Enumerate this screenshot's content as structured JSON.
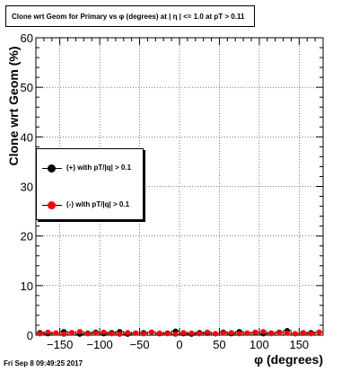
{
  "title": "Clone wrt Geom for Primary vs φ (degrees) at | η | <= 1.0 at pT > 0.11",
  "timestamp": "Fri Sep  8 09:49:25 2017",
  "chart_data": {
    "type": "scatter",
    "xlabel": "φ (degrees)",
    "ylabel": "Clone wrt Geom (%)",
    "xlim": [
      -180,
      180
    ],
    "ylim": [
      0,
      60
    ],
    "xticks": [
      -150,
      -100,
      -50,
      0,
      50,
      100,
      150
    ],
    "yticks": [
      0,
      10,
      20,
      30,
      40,
      50,
      60
    ],
    "grid": true,
    "legend_position": "left",
    "colors": {
      "positive": "#000000",
      "negative": "#ff0000"
    },
    "x": [
      -175,
      -165,
      -155,
      -145,
      -135,
      -125,
      -115,
      -105,
      -95,
      -85,
      -75,
      -65,
      -55,
      -45,
      -35,
      -25,
      -15,
      -5,
      5,
      15,
      25,
      35,
      45,
      55,
      65,
      75,
      85,
      95,
      105,
      115,
      125,
      135,
      145,
      155,
      165,
      175
    ],
    "series": [
      {
        "name": "(+) with pT/|q| > 0.1",
        "values": [
          0.5,
          0.3,
          0.4,
          0.7,
          0.5,
          0.2,
          0.4,
          0.6,
          0.3,
          0.5,
          0.7,
          0.2,
          0.4,
          0.5,
          0.6,
          0.3,
          0.4,
          0.8,
          0.3,
          0.2,
          0.5,
          0.4,
          0.3,
          0.6,
          0.3,
          0.7,
          0.4,
          0.5,
          0.3,
          0.4,
          0.6,
          0.9,
          0.3,
          0.4,
          0.5,
          0.6
        ]
      },
      {
        "name": "(-) with pT/|q| > 0.1",
        "values": [
          0.3,
          0.6,
          0.4,
          0.2,
          0.5,
          0.7,
          0.3,
          0.4,
          0.6,
          0.3,
          0.2,
          0.5,
          0.4,
          0.3,
          0.6,
          0.4,
          0.3,
          0.2,
          0.5,
          0.4,
          0.3,
          0.6,
          0.3,
          0.4,
          0.5,
          0.3,
          0.4,
          0.6,
          0.7,
          0.3,
          0.5,
          0.4,
          0.3,
          0.5,
          0.3,
          0.6
        ]
      }
    ]
  }
}
